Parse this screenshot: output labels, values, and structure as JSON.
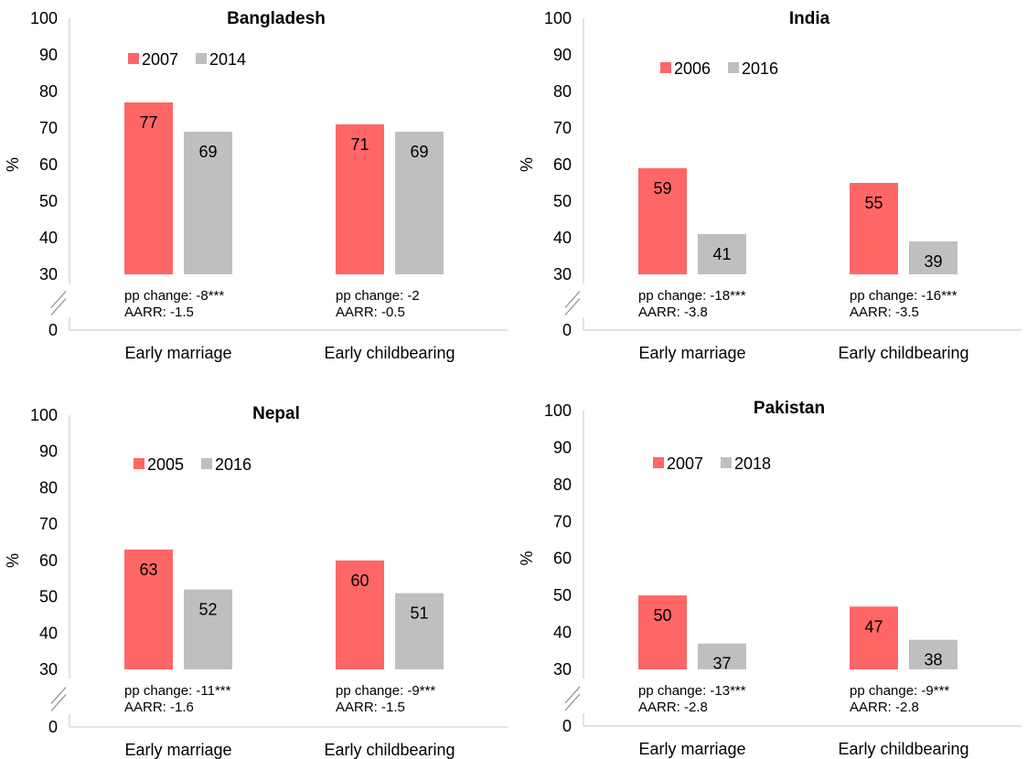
{
  "panels": [
    {
      "title": "Bangladesh",
      "ylabel": "%",
      "yticks": [
        "100",
        "90",
        "80",
        "70",
        "60",
        "50",
        "40",
        "30",
        "0"
      ],
      "legend": [
        "2007",
        "2014"
      ],
      "categories": [
        {
          "label": "Early marriage",
          "values": [
            77,
            69
          ],
          "value_labels": [
            "77",
            "69"
          ],
          "pp": "pp change: -8***",
          "aarr": "AARR: -1.5"
        },
        {
          "label": "Early childbearing",
          "values": [
            71,
            69
          ],
          "value_labels": [
            "71",
            "69"
          ],
          "pp": "pp change: -2",
          "aarr": "AARR: -0.5"
        }
      ]
    },
    {
      "title": "India",
      "ylabel": "%",
      "yticks": [
        "100",
        "90",
        "80",
        "70",
        "60",
        "50",
        "40",
        "30",
        "0"
      ],
      "legend": [
        "2006",
        "2016"
      ],
      "categories": [
        {
          "label": "Early marriage",
          "values": [
            59,
            41
          ],
          "value_labels": [
            "59",
            "41"
          ],
          "pp": "pp change: -18***",
          "aarr": "AARR: -3.8"
        },
        {
          "label": "Early childbearing",
          "values": [
            55,
            39
          ],
          "value_labels": [
            "55",
            "39"
          ],
          "pp": "pp change: -16***",
          "aarr": "AARR: -3.5"
        }
      ]
    },
    {
      "title": "Nepal",
      "ylabel": "%",
      "yticks": [
        "100",
        "90",
        "80",
        "70",
        "60",
        "50",
        "40",
        "30",
        "0"
      ],
      "legend": [
        "2005",
        "2016"
      ],
      "categories": [
        {
          "label": "Early marriage",
          "values": [
            63,
            52
          ],
          "value_labels": [
            "63",
            "52"
          ],
          "pp": "pp change: -11***",
          "aarr": "AARR: -1.6"
        },
        {
          "label": "Early childbearing",
          "values": [
            60,
            51
          ],
          "value_labels": [
            "60",
            "51"
          ],
          "pp": "pp change: -9***",
          "aarr": "AARR: -1.5"
        }
      ]
    },
    {
      "title": "Pakistan",
      "ylabel": "%",
      "yticks": [
        "100",
        "90",
        "80",
        "70",
        "60",
        "50",
        "40",
        "30",
        "0"
      ],
      "legend": [
        "2007",
        "2018"
      ],
      "categories": [
        {
          "label": "Early marriage",
          "values": [
            50,
            37
          ],
          "value_labels": [
            "50",
            "37"
          ],
          "pp": "pp change: -13***",
          "aarr": "AARR: -2.8"
        },
        {
          "label": "Early childbearing",
          "values": [
            47,
            38
          ],
          "value_labels": [
            "47",
            "38"
          ],
          "pp": "pp change: -9***",
          "aarr": "AARR: -2.8"
        }
      ]
    }
  ],
  "colors": {
    "series1": "#ff6666",
    "series2": "#bfbfbf",
    "axis": "#d9d9d9",
    "text": "#000000"
  },
  "chart_data": [
    {
      "type": "bar",
      "title": "Bangladesh",
      "ylabel": "%",
      "ylim": [
        30,
        100
      ],
      "axis_break": "0 to 30",
      "categories": [
        "Early marriage",
        "Early childbearing"
      ],
      "series": [
        {
          "name": "2007",
          "values": [
            77,
            71
          ]
        },
        {
          "name": "2014",
          "values": [
            69,
            69
          ]
        }
      ],
      "annotations": [
        "pp change: -8***",
        "AARR: -1.5",
        "pp change: -2",
        "AARR: -0.5"
      ],
      "legend": "top-left",
      "grid": false
    },
    {
      "type": "bar",
      "title": "India",
      "ylabel": "%",
      "ylim": [
        30,
        100
      ],
      "axis_break": "0 to 30",
      "categories": [
        "Early marriage",
        "Early childbearing"
      ],
      "series": [
        {
          "name": "2006",
          "values": [
            59,
            55
          ]
        },
        {
          "name": "2016",
          "values": [
            41,
            39
          ]
        }
      ],
      "annotations": [
        "pp change: -18***",
        "AARR: -3.8",
        "pp change: -16***",
        "AARR: -3.5"
      ],
      "legend": "top-left",
      "grid": false
    },
    {
      "type": "bar",
      "title": "Nepal",
      "ylabel": "%",
      "ylim": [
        30,
        100
      ],
      "axis_break": "0 to 30",
      "categories": [
        "Early marriage",
        "Early childbearing"
      ],
      "series": [
        {
          "name": "2005",
          "values": [
            63,
            60
          ]
        },
        {
          "name": "2016",
          "values": [
            52,
            51
          ]
        }
      ],
      "annotations": [
        "pp change: -11***",
        "AARR: -1.6",
        "pp change: -9***",
        "AARR: -1.5"
      ],
      "legend": "top-left",
      "grid": false
    },
    {
      "type": "bar",
      "title": "Pakistan",
      "ylabel": "%",
      "ylim": [
        30,
        100
      ],
      "axis_break": "0 to 30",
      "categories": [
        "Early marriage",
        "Early childbearing"
      ],
      "series": [
        {
          "name": "2007",
          "values": [
            50,
            47
          ]
        },
        {
          "name": "2018",
          "values": [
            37,
            38
          ]
        }
      ],
      "annotations": [
        "pp change: -13***",
        "AARR: -2.8",
        "pp change: -9***",
        "AARR: -2.8"
      ],
      "legend": "top-left",
      "grid": false
    }
  ]
}
